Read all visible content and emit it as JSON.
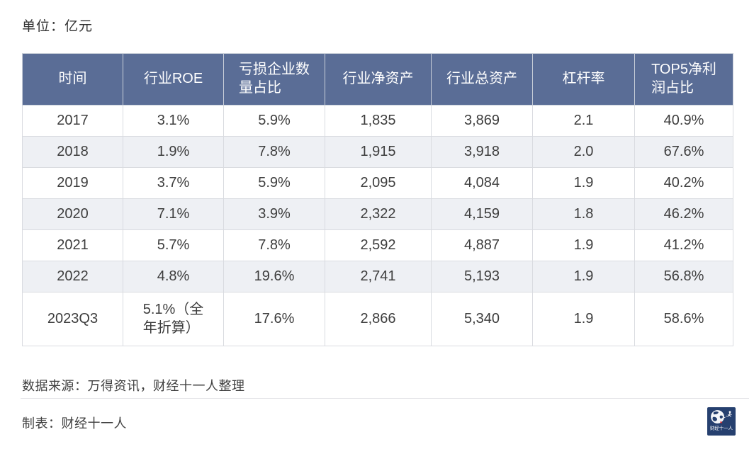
{
  "unit_label": "单位：亿元",
  "table": {
    "headers": [
      "时间",
      "行业ROE",
      "亏损企业数\n量占比",
      "行业净资产",
      "行业总资产",
      "杠杆率",
      "TOP5净利\n润占比"
    ],
    "rows": [
      [
        "2017",
        "3.1%",
        "5.9%",
        "1,835",
        "3,869",
        "2.1",
        "40.9%"
      ],
      [
        "2018",
        "1.9%",
        "7.8%",
        "1,915",
        "3,918",
        "2.0",
        "67.6%"
      ],
      [
        "2019",
        "3.7%",
        "5.9%",
        "2,095",
        "4,084",
        "1.9",
        "40.2%"
      ],
      [
        "2020",
        "7.1%",
        "3.9%",
        "2,322",
        "4,159",
        "1.8",
        "46.2%"
      ],
      [
        "2021",
        "5.7%",
        "7.8%",
        "2,592",
        "4,887",
        "1.9",
        "41.2%"
      ],
      [
        "2022",
        "4.8%",
        "19.6%",
        "2,741",
        "5,193",
        "1.9",
        "56.8%"
      ],
      [
        "2023Q3",
        "5.1%（全\n年折算）",
        "17.6%",
        "2,866",
        "5,340",
        "1.9",
        "58.6%"
      ]
    ]
  },
  "chart_data": {
    "type": "table",
    "title": "",
    "unit": "单位：亿元",
    "columns": [
      "时间",
      "行业ROE",
      "亏损企业数量占比",
      "行业净资产",
      "行业总资产",
      "杠杆率",
      "TOP5净利润占比"
    ],
    "rows": [
      [
        "2017",
        "3.1%",
        "5.9%",
        "1,835",
        "3,869",
        "2.1",
        "40.9%"
      ],
      [
        "2018",
        "1.9%",
        "7.8%",
        "1,915",
        "3,918",
        "2.0",
        "67.6%"
      ],
      [
        "2019",
        "3.7%",
        "5.9%",
        "2,095",
        "4,084",
        "1.9",
        "40.2%"
      ],
      [
        "2020",
        "7.1%",
        "3.9%",
        "2,322",
        "4,159",
        "1.8",
        "46.2%"
      ],
      [
        "2021",
        "5.7%",
        "7.8%",
        "2,592",
        "4,887",
        "1.9",
        "41.2%"
      ],
      [
        "2022",
        "4.8%",
        "19.6%",
        "2,741",
        "5,193",
        "1.9",
        "56.8%"
      ],
      [
        "2023Q3",
        "5.1%（全年折算）",
        "17.6%",
        "2,866",
        "5,340",
        "1.9",
        "58.6%"
      ]
    ]
  },
  "footer": {
    "source": "数据来源：万得资讯，财经十一人整理",
    "credit": "制表：财经十一人",
    "logo_text": "财经十一人"
  },
  "colors": {
    "header_bg": "#5a6d96",
    "alt_row_bg": "#eef0f4",
    "border": "#d9dbe0",
    "body_text": "#3d3d3d",
    "logo_bg": "#26406f",
    "logo_accent_red": "#d9262c"
  }
}
